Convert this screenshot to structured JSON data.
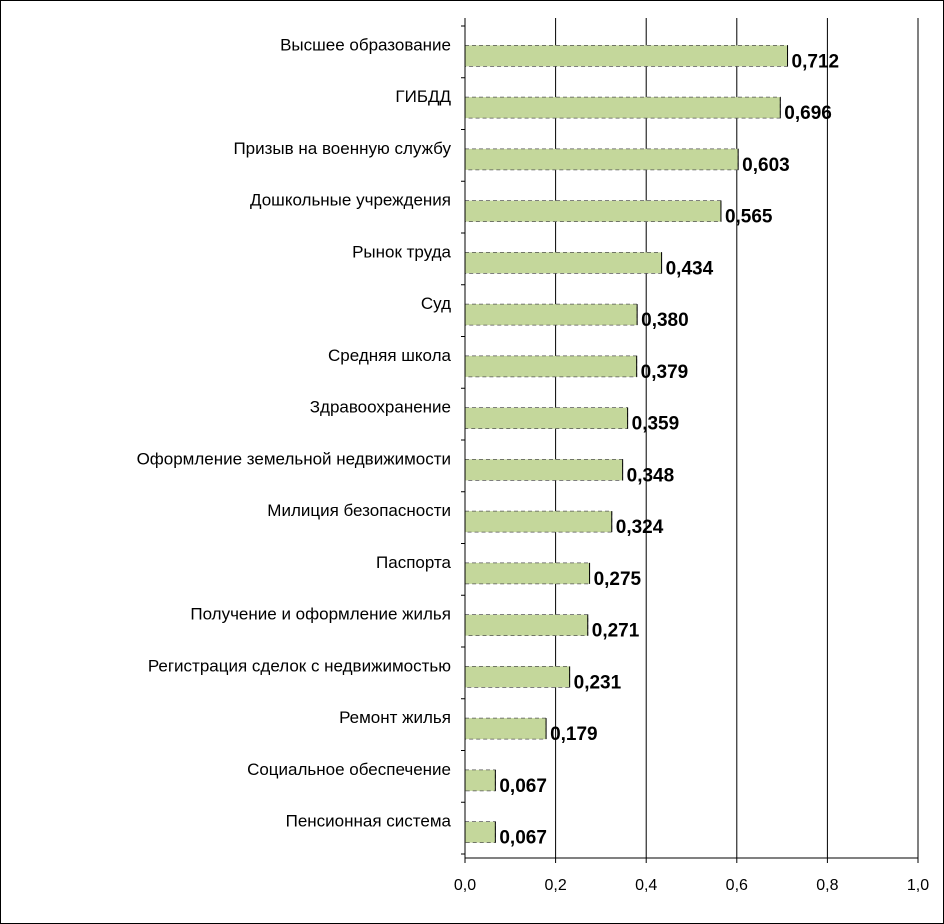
{
  "chart_data": {
    "type": "bar",
    "orientation": "horizontal",
    "categories": [
      "Высшее образование",
      "ГИБДД",
      "Призыв на военную службу",
      "Дошкольные учреждения",
      "Рынок труда",
      "Суд",
      "Средняя школа",
      "Здравоохранение",
      "Оформление земельной недвижимости",
      "Милиция безопасности",
      "Паспорта",
      "Получение и оформление жилья",
      "Регистрация сделок с недвижимостью",
      "Ремонт жилья",
      "Социальное обеспечение",
      "Пенсионная система"
    ],
    "values": [
      0.712,
      0.696,
      0.603,
      0.565,
      0.434,
      0.38,
      0.379,
      0.359,
      0.348,
      0.324,
      0.275,
      0.271,
      0.231,
      0.179,
      0.067,
      0.067
    ],
    "value_labels": [
      "0,712",
      "0,696",
      "0,603",
      "0,565",
      "0,434",
      "0,380",
      "0,379",
      "0,359",
      "0,348",
      "0,324",
      "0,275",
      "0,271",
      "0,231",
      "0,179",
      "0,067",
      "0,067"
    ],
    "x_ticks": [
      0,
      0.2,
      0.4,
      0.6,
      0.8,
      1.0
    ],
    "x_tick_labels": [
      "0,0",
      "0,2",
      "0,4",
      "0,6",
      "0,8",
      "1,0"
    ],
    "xlim": [
      0,
      1.0
    ],
    "grid": "vertical",
    "bar_color": "#c4d79b",
    "title": "",
    "xlabel": "",
    "ylabel": ""
  }
}
